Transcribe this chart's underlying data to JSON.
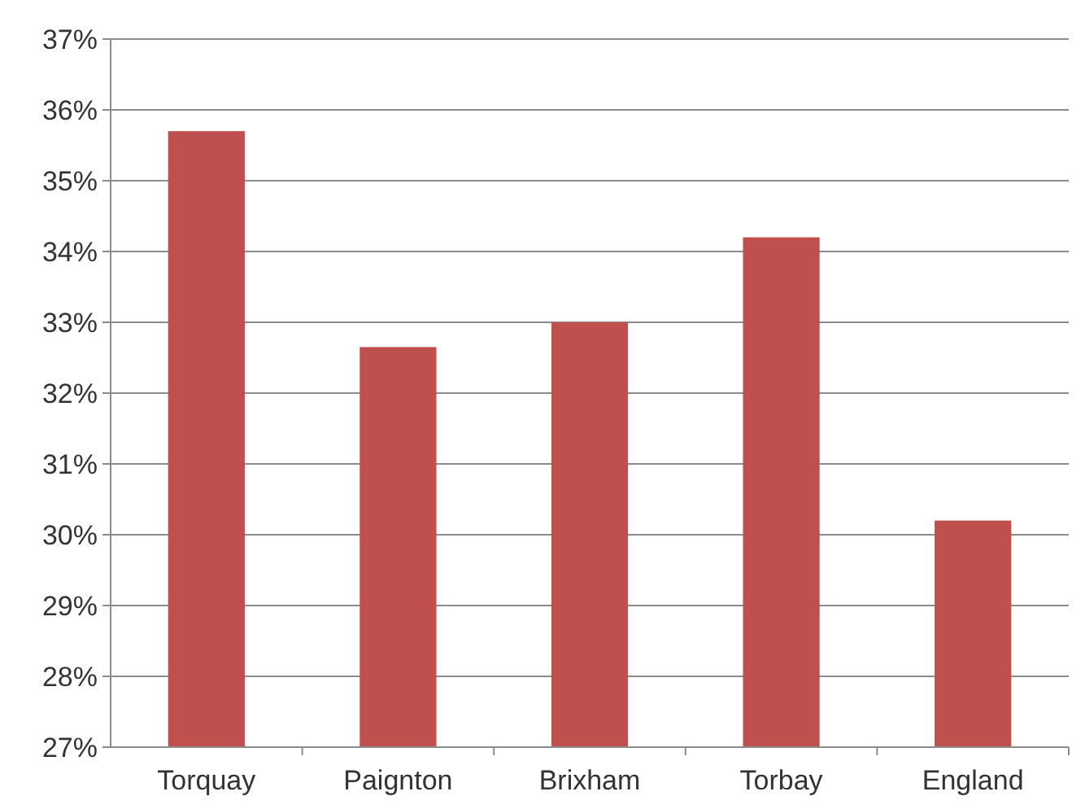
{
  "chart_data": {
    "type": "bar",
    "categories": [
      "Torquay",
      "Paignton",
      "Brixham",
      "Torbay",
      "England"
    ],
    "values": [
      35.7,
      32.65,
      33.0,
      34.2,
      30.2
    ],
    "color": "#c0504d",
    "ylim": [
      27,
      37
    ],
    "yticks": [
      {
        "value": 27,
        "label": "27%"
      },
      {
        "value": 28,
        "label": "28%"
      },
      {
        "value": 29,
        "label": "29%"
      },
      {
        "value": 30,
        "label": "30%"
      },
      {
        "value": 31,
        "label": "31%"
      },
      {
        "value": 32,
        "label": "32%"
      },
      {
        "value": 33,
        "label": "33%"
      },
      {
        "value": 34,
        "label": "34%"
      },
      {
        "value": 35,
        "label": "35%"
      },
      {
        "value": 36,
        "label": "36%"
      },
      {
        "value": 37,
        "label": "37%"
      }
    ],
    "grid": "y"
  }
}
